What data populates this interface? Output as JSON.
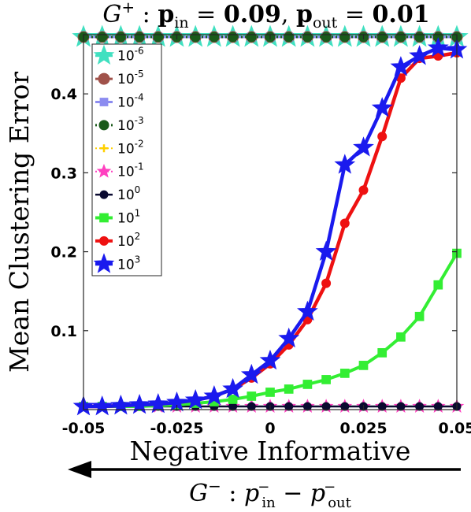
{
  "chart_data": {
    "type": "line",
    "title_math": {
      "graph": "G",
      "graph_sup": "+",
      "p_in_label": "p",
      "p_in_sub": "in",
      "p_in_value": "0.09",
      "p_out_label": "p",
      "p_out_sub": "out",
      "p_out_value": "0.01"
    },
    "ylabel": "Mean Clustering Error",
    "xlabel": "Negative Informative",
    "x_subtitle_math": {
      "graph": "G",
      "graph_sup": "−",
      "p": "p",
      "sub_in": "in",
      "sub_out": "out",
      "sup": "−"
    },
    "xlim": [
      -0.05,
      0.05
    ],
    "ylim": [
      0,
      0.475
    ],
    "xticks": [
      -0.05,
      -0.025,
      0,
      0.025,
      0.05
    ],
    "xtick_labels": [
      "-0.05",
      "-0.025",
      "0",
      "0.025",
      "0.05"
    ],
    "yticks": [
      0.1,
      0.2,
      0.3,
      0.4
    ],
    "ytick_labels": [
      "0.1",
      "0.2",
      "0.3",
      "0.4"
    ],
    "grid": false,
    "legend_placement": "top-left",
    "x": [
      -0.05,
      -0.045,
      -0.04,
      -0.035,
      -0.03,
      -0.025,
      -0.02,
      -0.015,
      -0.01,
      -0.005,
      0,
      0.005,
      0.01,
      0.015,
      0.02,
      0.025,
      0.03,
      0.035,
      0.04,
      0.045,
      0.05
    ],
    "series": [
      {
        "name_base": "10",
        "name_exp": "-6",
        "color": "#40e0c0",
        "marker": "star",
        "values": [
          0.472,
          0.472,
          0.472,
          0.472,
          0.472,
          0.472,
          0.472,
          0.472,
          0.472,
          0.472,
          0.472,
          0.472,
          0.472,
          0.472,
          0.472,
          0.472,
          0.472,
          0.472,
          0.472,
          0.472,
          0.472
        ]
      },
      {
        "name_base": "10",
        "name_exp": "-5",
        "color": "#a0524a",
        "marker": "circle",
        "values": [
          0.472,
          0.472,
          0.472,
          0.472,
          0.472,
          0.472,
          0.472,
          0.472,
          0.472,
          0.472,
          0.472,
          0.472,
          0.472,
          0.472,
          0.472,
          0.472,
          0.472,
          0.472,
          0.472,
          0.472,
          0.472
        ]
      },
      {
        "name_base": "10",
        "name_exp": "-4",
        "color": "#8c8cf0",
        "marker": "square",
        "values": [
          0.472,
          0.472,
          0.472,
          0.472,
          0.472,
          0.472,
          0.472,
          0.472,
          0.472,
          0.472,
          0.472,
          0.472,
          0.472,
          0.472,
          0.472,
          0.472,
          0.472,
          0.472,
          0.472,
          0.472,
          0.472
        ]
      },
      {
        "name_base": "10",
        "name_exp": "-3",
        "color": "#1a5a1a",
        "marker": "circle",
        "dash": "dotted",
        "values": [
          0.472,
          0.472,
          0.472,
          0.472,
          0.472,
          0.472,
          0.472,
          0.472,
          0.472,
          0.472,
          0.472,
          0.472,
          0.472,
          0.472,
          0.472,
          0.472,
          0.472,
          0.472,
          0.472,
          0.472,
          0.472
        ]
      },
      {
        "name_base": "10",
        "name_exp": "-2",
        "color": "#ffd000",
        "marker": "plus",
        "dash": "dotted",
        "values": [
          0.004,
          0.004,
          0.004,
          0.004,
          0.004,
          0.004,
          0.004,
          0.004,
          0.004,
          0.004,
          0.004,
          0.004,
          0.004,
          0.004,
          0.004,
          0.004,
          0.004,
          0.004,
          0.004,
          0.004,
          0.004
        ]
      },
      {
        "name_base": "10",
        "name_exp": "-1",
        "color": "#ff40c0",
        "marker": "star",
        "dash": "dotted",
        "values": [
          0.004,
          0.004,
          0.004,
          0.004,
          0.004,
          0.004,
          0.004,
          0.004,
          0.004,
          0.004,
          0.004,
          0.004,
          0.004,
          0.004,
          0.004,
          0.004,
          0.004,
          0.004,
          0.004,
          0.004,
          0.004
        ]
      },
      {
        "name_base": "10",
        "name_exp": "0",
        "color": "#0a0a30",
        "marker": "circle",
        "values": [
          0.004,
          0.004,
          0.004,
          0.004,
          0.004,
          0.004,
          0.004,
          0.004,
          0.004,
          0.004,
          0.004,
          0.004,
          0.004,
          0.004,
          0.004,
          0.004,
          0.004,
          0.004,
          0.004,
          0.004,
          0.004
        ]
      },
      {
        "name_base": "10",
        "name_exp": "1",
        "color": "#33ee33",
        "marker": "square",
        "values": [
          0.004,
          0.004,
          0.004,
          0.004,
          0.005,
          0.006,
          0.008,
          0.01,
          0.013,
          0.017,
          0.022,
          0.026,
          0.032,
          0.038,
          0.046,
          0.056,
          0.072,
          0.092,
          0.118,
          0.158,
          0.198
        ]
      },
      {
        "name_base": "10",
        "name_exp": "2",
        "color": "#ee1111",
        "marker": "circle",
        "values": [
          0.004,
          0.004,
          0.005,
          0.006,
          0.007,
          0.009,
          0.012,
          0.017,
          0.026,
          0.04,
          0.058,
          0.082,
          0.114,
          0.16,
          0.236,
          0.278,
          0.346,
          0.42,
          0.445,
          0.448,
          0.452
        ]
      },
      {
        "name_base": "10",
        "name_exp": "3",
        "color": "#1a1aee",
        "marker": "star",
        "values": [
          0.004,
          0.004,
          0.005,
          0.006,
          0.007,
          0.009,
          0.012,
          0.017,
          0.026,
          0.044,
          0.062,
          0.09,
          0.124,
          0.2,
          0.31,
          0.332,
          0.382,
          0.434,
          0.448,
          0.458,
          0.456
        ]
      }
    ]
  }
}
